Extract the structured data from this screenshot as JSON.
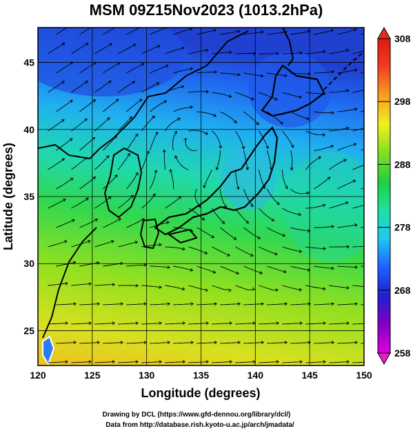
{
  "title": "MSM 09Z15Nov2023 (1013.2hPa)",
  "x_axis": {
    "label": "Longitude (degrees)",
    "range": [
      120,
      150
    ],
    "ticks": [
      "120",
      "125",
      "130",
      "135",
      "140",
      "145",
      "150"
    ]
  },
  "y_axis": {
    "label": "Latitude  (degrees)",
    "range": [
      22.4,
      47.6
    ],
    "ticks": [
      "25",
      "30",
      "35",
      "40",
      "45"
    ]
  },
  "colorbar": {
    "range": [
      258,
      308
    ],
    "ticks": [
      "258",
      "268",
      "278",
      "288",
      "298",
      "308"
    ],
    "colors": [
      "#e000e0",
      "#8000c0",
      "#2020d0",
      "#2060ff",
      "#20c8f0",
      "#20e0a0",
      "#20d040",
      "#80e020",
      "#f0f020",
      "#f8a020",
      "#f04020",
      "#e01818"
    ]
  },
  "credits": {
    "line1": "Drawing by DCL (https://www.gfd-dennou.org/library/dcl/)",
    "line2": "Data from http://database.rish.kyoto-u.ac.jp/arch/jmadata/"
  }
}
